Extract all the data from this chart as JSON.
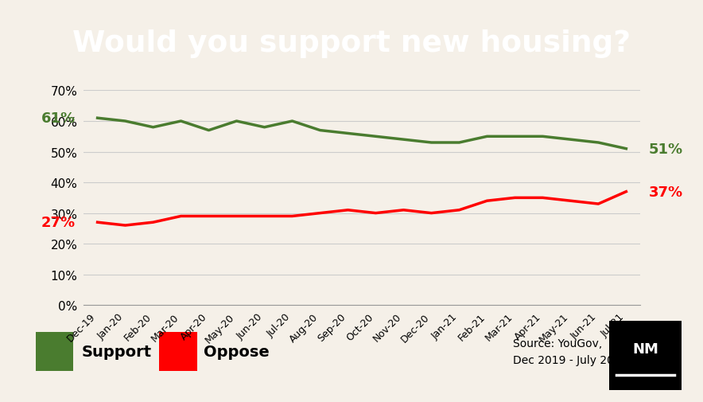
{
  "title": "Would you support new housing?",
  "background_color": "#f5f0e8",
  "title_bg_color": "#000000",
  "title_text_color": "#ffffff",
  "support_color": "#4a7c2f",
  "oppose_color": "#ff0000",
  "x_labels": [
    "Dec-19",
    "Jan-20",
    "Feb-20",
    "Mar-20",
    "Apr-20",
    "May-20",
    "Jun-20",
    "Jul-20",
    "Aug-20",
    "Sep-20",
    "Oct-20",
    "Nov-20",
    "Dec-20",
    "Jan-21",
    "Feb-21",
    "Mar-21",
    "Apr-21",
    "May-21",
    "Jun-21",
    "Jul-21"
  ],
  "support_values": [
    61,
    60,
    58,
    60,
    57,
    60,
    58,
    60,
    57,
    56,
    55,
    54,
    53,
    53,
    55,
    55,
    55,
    54,
    53,
    51
  ],
  "oppose_values": [
    27,
    26,
    27,
    29,
    29,
    29,
    29,
    29,
    30,
    31,
    30,
    31,
    30,
    31,
    34,
    35,
    35,
    34,
    33,
    37
  ],
  "ylim": [
    0,
    70
  ],
  "ytick_vals": [
    0,
    10,
    20,
    30,
    40,
    50,
    60,
    70
  ],
  "source_text": "Source: YouGov,\nDec 2019 - July 2021",
  "start_label_support": "61%",
  "end_label_support": "51%",
  "start_label_oppose": "27%",
  "end_label_oppose": "37%",
  "legend_support": "Support",
  "legend_oppose": "Oppose"
}
